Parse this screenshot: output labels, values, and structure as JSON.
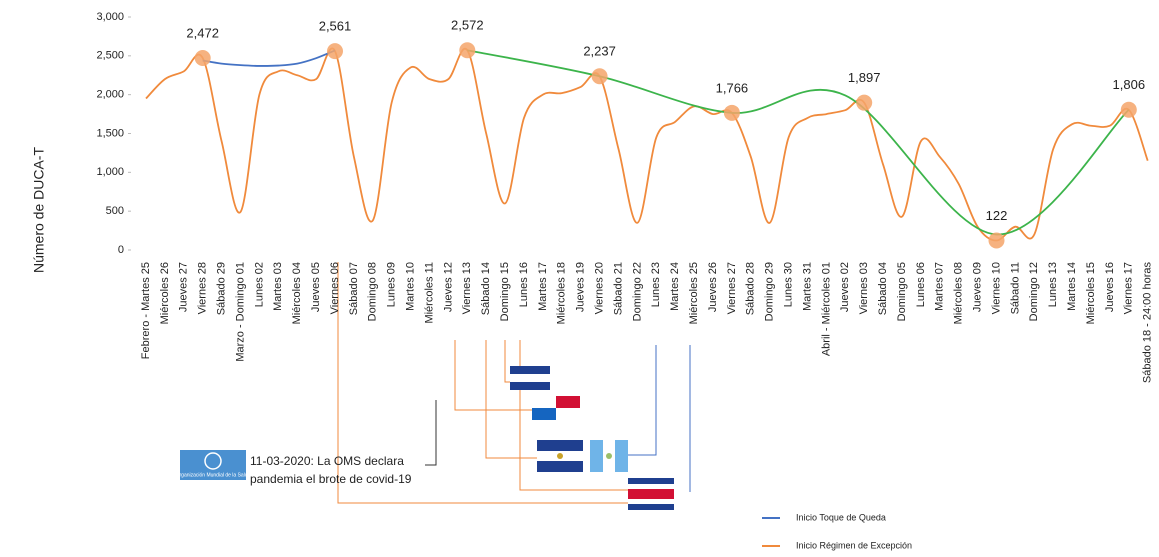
{
  "chart_data": {
    "type": "line",
    "ylabel": "Número de  DUCA-T",
    "categories": [
      "Febrero - Martes 25",
      "Miércoles 26",
      "Jueves 27",
      "Viernes 28",
      "Sábado 29",
      "Marzo - Domingo 01",
      "Lunes 02",
      "Martes 03",
      "Miércoles 04",
      "Jueves 05",
      "Viernes 06",
      "Sábado 07",
      "Domingo 08",
      "Lunes 09",
      "Martes 10",
      "Miércoles 11",
      "Jueves 12",
      "Viernes 13",
      "Sábado 14",
      "Domingo 15",
      "Lunes 16",
      "Martes 17",
      "Miércoles 18",
      "Jueves 19",
      "Viernes 20",
      "Sábado 21",
      "Domingo 22",
      "Lunes 23",
      "Martes 24",
      "Miércoles 25",
      "Jueves 26",
      "Viernes 27",
      "Sábado 28",
      "Domingo 29",
      "Lunes 30",
      "Martes 31",
      "Abril - Miércoles 01",
      "Jueves 02",
      "Viernes 03",
      "Sábado 04",
      "Domingo 05",
      "Lunes 06",
      "Martes 07",
      "Miércoles 08",
      "Jueves 09",
      "Viernes 10",
      "Sábado 11",
      "Domingo 12",
      "Lunes 13",
      "Martes 14",
      "Miércoles 15",
      "Jueves 16",
      "Viernes 17",
      "Sábado 18 - 24:00 horas"
    ],
    "series": [
      {
        "color": "#f08a3c",
        "values": [
          1950,
          2200,
          2300,
          2472,
          1400,
          490,
          2000,
          2300,
          2250,
          2200,
          2561,
          1200,
          380,
          1900,
          2350,
          2200,
          2200,
          2572,
          1500,
          600,
          1700,
          2000,
          2020,
          2100,
          2237,
          1300,
          350,
          1450,
          1650,
          1850,
          1750,
          1766,
          1200,
          350,
          1450,
          1700,
          1750,
          1800,
          1897,
          1100,
          430,
          1400,
          1200,
          850,
          300,
          122,
          300,
          200,
          1300,
          1620,
          1600,
          1600,
          1806,
          1150
        ]
      },
      {
        "name": "Inicio Toque de Queda",
        "color": "#4472c4",
        "values": [
          null,
          null,
          null,
          2440,
          2400,
          2380,
          2370,
          2375,
          2400,
          2470,
          2570,
          null,
          null,
          null,
          null,
          null,
          null,
          null,
          null,
          null,
          null,
          null,
          null,
          null,
          null,
          null,
          null,
          null,
          null,
          null,
          null,
          null,
          null,
          null,
          null,
          null,
          null,
          null,
          null,
          null,
          null,
          null,
          null,
          null,
          null,
          null,
          null,
          null,
          null,
          null,
          null,
          null,
          null,
          null
        ]
      },
      {
        "color": "#3cb44b",
        "values": [
          null,
          null,
          null,
          null,
          null,
          null,
          null,
          null,
          null,
          null,
          null,
          null,
          null,
          null,
          null,
          null,
          null,
          2572,
          null,
          null,
          null,
          null,
          null,
          null,
          2237,
          null,
          null,
          null,
          null,
          null,
          null,
          1766,
          null,
          null,
          null,
          null,
          null,
          1990,
          null,
          null,
          null,
          null,
          null,
          null,
          null,
          200,
          null,
          null,
          null,
          null,
          null,
          null,
          1806,
          null
        ]
      },
      {
        "color": "#f4a46a",
        "values": [
          null,
          null,
          null,
          2472,
          null,
          null,
          null,
          null,
          null,
          null,
          2561,
          null,
          null,
          null,
          null,
          null,
          null,
          2572,
          null,
          null,
          null,
          null,
          null,
          null,
          2237,
          null,
          null,
          null,
          null,
          null,
          null,
          1766,
          null,
          null,
          null,
          null,
          null,
          null,
          1897,
          null,
          null,
          null,
          null,
          null,
          null,
          122,
          null,
          null,
          null,
          null,
          null,
          null,
          1806,
          null
        ],
        "value_labels": [
          null,
          null,
          null,
          "2,472",
          null,
          null,
          null,
          null,
          null,
          null,
          "2,561",
          null,
          null,
          null,
          null,
          null,
          null,
          "2,572",
          null,
          null,
          null,
          null,
          null,
          null,
          "2,237",
          null,
          null,
          null,
          null,
          null,
          null,
          "1,766",
          null,
          null,
          null,
          null,
          null,
          null,
          "1,897",
          null,
          null,
          null,
          null,
          null,
          null,
          "122",
          null,
          null,
          null,
          null,
          null,
          null,
          "1,806",
          null
        ]
      }
    ],
    "legend": [
      {
        "name": "Inicio Toque de Queda",
        "color": "#4472c4"
      },
      {
        "name": "Inicio Régimen de Excepción",
        "color": "#f08a3c"
      }
    ],
    "ylim": [
      0,
      3000
    ],
    "yticks": [
      0,
      {
        "value": 500,
        "label": "500"
      },
      {
        "value": 1000,
        "label": "1,000"
      },
      {
        "value": 1500,
        "label": "1,500"
      },
      {
        "value": 2000,
        "label": "2,000"
      },
      {
        "value": 2500,
        "label": "2,500"
      },
      {
        "value": 3000,
        "label": "3,000"
      }
    ],
    "annotations": {
      "who_org": "Organización Mundial de la Salud",
      "who_line1": "11-03-2020: La OMS declara",
      "who_line2": "pandemia el brote de covid-19"
    }
  }
}
